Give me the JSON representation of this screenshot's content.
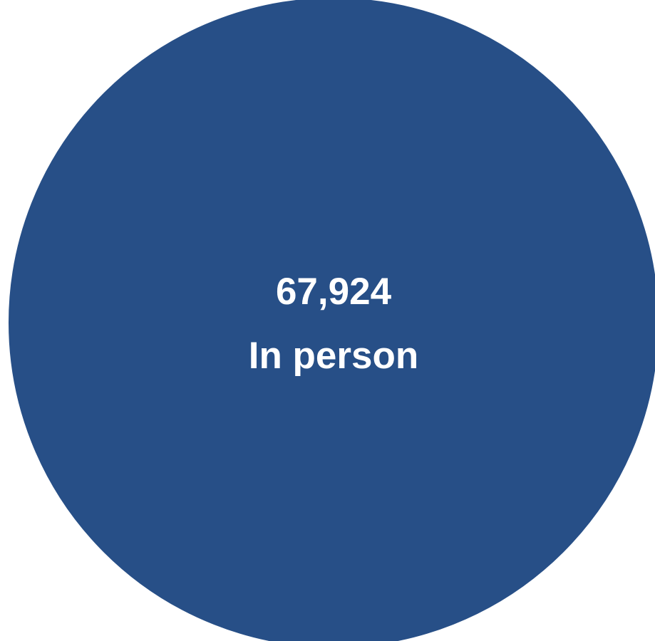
{
  "chart_data": {
    "type": "pie",
    "categories": [
      "In person"
    ],
    "values": [
      67924
    ],
    "data_labels": [
      {
        "value_text": "67,924",
        "category_text": "In person"
      }
    ],
    "colors": [
      "#274f87"
    ]
  }
}
